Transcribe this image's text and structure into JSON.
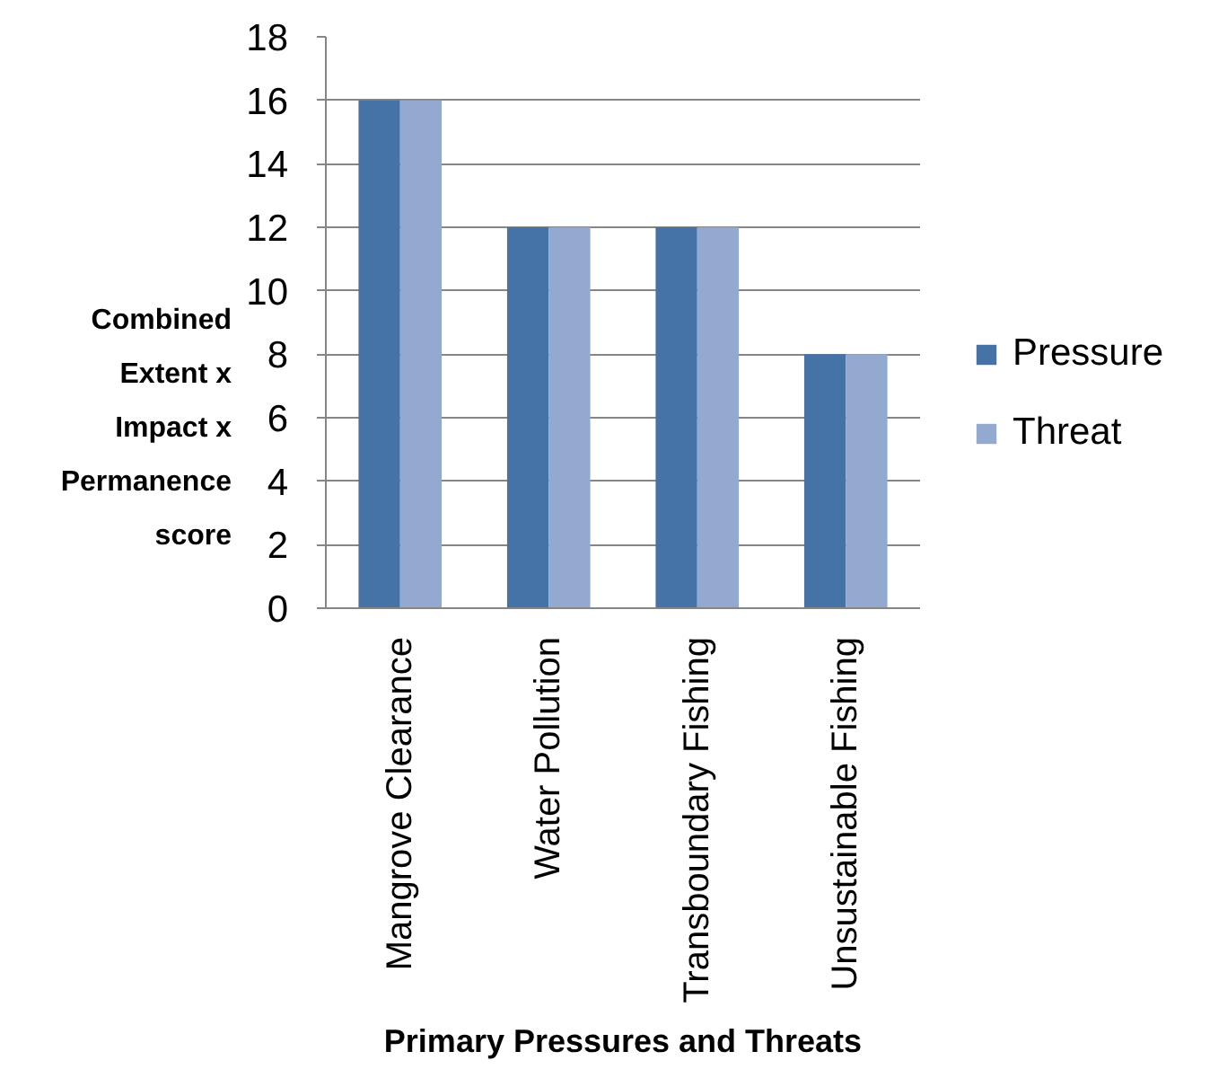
{
  "chart_data": {
    "type": "bar",
    "xlabel": "Primary Pressures and Threats",
    "ylabel": "Combined Extent x Impact x Permanence score",
    "categories": [
      "Mangrove Clearance",
      "Water Pollution",
      "Transboundary Fishing",
      "Unsustainable Fishing"
    ],
    "series": [
      {
        "name": "Pressure",
        "color": "#4572a7",
        "values": [
          16,
          12,
          12,
          8
        ]
      },
      {
        "name": "Threat",
        "color": "#93a9cf",
        "values": [
          16,
          12,
          12,
          8
        ]
      }
    ],
    "ylim": [
      0,
      18
    ],
    "yticks": [
      0,
      2,
      4,
      6,
      8,
      10,
      12,
      14,
      16,
      18
    ],
    "grid": "y",
    "legend": "right"
  }
}
